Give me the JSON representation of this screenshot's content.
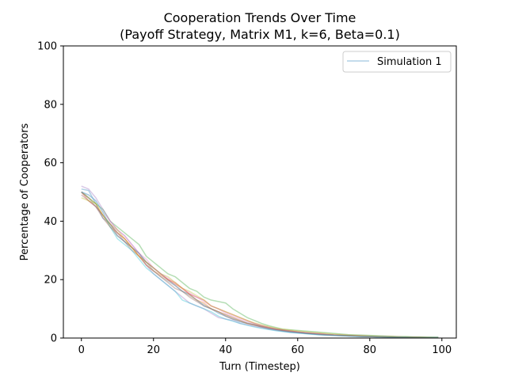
{
  "chart_data": {
    "type": "line",
    "title": "Cooperation Trends Over Time",
    "subtitle": "(Payoff Strategy, Matrix M1, k=6, Beta=0.1)",
    "xlabel": "Turn (Timestep)",
    "ylabel": "Percentage of Cooperators",
    "xlim": [
      -5,
      104
    ],
    "ylim": [
      0,
      100
    ],
    "xticks": [
      0,
      20,
      40,
      60,
      80,
      100
    ],
    "yticks": [
      0,
      20,
      40,
      60,
      80,
      100
    ],
    "grid": false,
    "legend": {
      "placement": "top-right",
      "entries": [
        "Simulation 1"
      ]
    },
    "x": [
      0,
      2,
      4,
      6,
      8,
      10,
      12,
      14,
      16,
      18,
      20,
      22,
      24,
      26,
      28,
      30,
      32,
      34,
      36,
      38,
      40,
      42,
      44,
      46,
      48,
      50,
      52,
      54,
      56,
      58,
      60,
      62,
      64,
      66,
      68,
      70,
      72,
      74,
      76,
      78,
      80,
      82,
      84,
      86,
      88,
      90,
      92,
      94,
      96,
      98,
      99
    ],
    "series": [
      {
        "name": "Simulation 1",
        "color": "#1f77b4",
        "values": [
          51,
          50.5,
          46,
          41,
          39,
          35,
          33,
          31,
          29,
          26,
          24,
          22,
          20,
          18,
          16,
          15,
          13,
          11,
          10,
          8.5,
          7.5,
          6.5,
          5.5,
          5,
          4.5,
          3.8,
          3.2,
          2.8,
          2.4,
          2,
          1.8,
          1.6,
          1.4,
          1.2,
          1,
          0.9,
          0.8,
          0.7,
          0.6,
          0.5,
          0.5,
          0.4,
          0.4,
          0.3,
          0.3,
          0.3,
          0.2,
          0.2,
          0.2,
          0.2,
          0.2
        ]
      },
      {
        "color": "#ff7f0e",
        "values": [
          50,
          48,
          46,
          42,
          38,
          36,
          34,
          31,
          28,
          25,
          23,
          21.5,
          20,
          19,
          17,
          15,
          13,
          12,
          10,
          9,
          8,
          7,
          6,
          5,
          4.5,
          4,
          3.6,
          3,
          2.7,
          2.4,
          2.1,
          1.8,
          1.6,
          1.4,
          1.2,
          1,
          0.9,
          0.8,
          0.7,
          0.6,
          0.5,
          0.5,
          0.4,
          0.4,
          0.3,
          0.3,
          0.3,
          0.3,
          0.2,
          0.2,
          0.2
        ]
      },
      {
        "color": "#2ca02c",
        "values": [
          50,
          48,
          46,
          44,
          40,
          38,
          36,
          34,
          32,
          28,
          26,
          24,
          22,
          21,
          19,
          17,
          16,
          14,
          13,
          12.5,
          12,
          10,
          8.5,
          7,
          6,
          5,
          4.2,
          3.6,
          3,
          2.8,
          2.6,
          2.4,
          2.2,
          2,
          1.8,
          1.6,
          1.4,
          1.2,
          1.1,
          1,
          0.9,
          0.8,
          0.7,
          0.6,
          0.5,
          0.5,
          0.4,
          0.4,
          0.3,
          0.3,
          0.3
        ]
      },
      {
        "color": "#d62728",
        "values": [
          50,
          47,
          45,
          42,
          39,
          36,
          34,
          31,
          28,
          26,
          24,
          22,
          20,
          18.5,
          17,
          15,
          14,
          13,
          11,
          10,
          9,
          8,
          7,
          6,
          5,
          4.2,
          3.6,
          3.1,
          2.7,
          2.4,
          2.1,
          1.8,
          1.6,
          1.5,
          1.3,
          1.1,
          1,
          0.9,
          0.8,
          0.7,
          0.6,
          0.5,
          0.5,
          0.4,
          0.4,
          0.3,
          0.3,
          0.2,
          0.2,
          0.2,
          0.2
        ]
      },
      {
        "color": "#9467bd",
        "values": [
          52,
          51,
          48,
          44,
          40,
          37,
          35,
          32,
          29,
          25,
          22,
          20,
          18,
          16,
          14,
          12,
          11,
          10,
          8.5,
          7,
          6.5,
          6,
          5,
          4.5,
          4,
          3.5,
          3,
          2.6,
          2.3,
          2,
          1.8,
          1.6,
          1.4,
          1.2,
          1,
          0.9,
          0.8,
          0.7,
          0.6,
          0.5,
          0.5,
          0.4,
          0.4,
          0.3,
          0.3,
          0.3,
          0.2,
          0.2,
          0.2,
          0.2,
          0.2
        ]
      },
      {
        "color": "#8c564b",
        "values": [
          49,
          47,
          45,
          41,
          38,
          35,
          33,
          30,
          28,
          25,
          23,
          21,
          19,
          17,
          16,
          14,
          12.5,
          11,
          10,
          9,
          7.5,
          6.5,
          5.8,
          5,
          4.4,
          3.8,
          3.3,
          2.9,
          2.5,
          2.2,
          2,
          1.7,
          1.5,
          1.3,
          1.1,
          1,
          0.9,
          0.8,
          0.7,
          0.6,
          0.5,
          0.5,
          0.4,
          0.4,
          0.3,
          0.3,
          0.2,
          0.2,
          0.2,
          0.2,
          0.2
        ]
      },
      {
        "color": "#e377c2",
        "values": [
          50,
          49,
          47,
          43,
          40,
          37,
          35,
          32,
          29,
          27,
          24,
          22,
          20.5,
          19,
          17,
          15.5,
          14,
          12.5,
          11,
          10,
          8.5,
          7.5,
          6.5,
          5.6,
          5,
          4.3,
          3.7,
          3.2,
          2.8,
          2.4,
          2.1,
          1.9,
          1.7,
          1.5,
          1.3,
          1.1,
          1,
          0.9,
          0.8,
          0.7,
          0.6,
          0.5,
          0.5,
          0.4,
          0.4,
          0.3,
          0.3,
          0.3,
          0.2,
          0.2,
          0.2
        ]
      },
      {
        "color": "#7f7f7f",
        "values": [
          50,
          48,
          45,
          42,
          39,
          36,
          33,
          31,
          29,
          26,
          23,
          21,
          19.5,
          18,
          16,
          14.5,
          13,
          11.5,
          10,
          9,
          8,
          7,
          6,
          5.2,
          4.6,
          4,
          3.4,
          3,
          2.6,
          2.3,
          2,
          1.8,
          1.6,
          1.4,
          1.2,
          1,
          0.9,
          0.8,
          0.7,
          0.6,
          0.5,
          0.5,
          0.4,
          0.4,
          0.3,
          0.3,
          0.3,
          0.2,
          0.2,
          0.2,
          0.2
        ]
      },
      {
        "color": "#bcbd22",
        "values": [
          48,
          47,
          46,
          42,
          39,
          37,
          34,
          31,
          28,
          26,
          24,
          22,
          21,
          19,
          17,
          16,
          14.5,
          13,
          11,
          10,
          9,
          8,
          7,
          6,
          5.2,
          4.5,
          3.9,
          3.4,
          3,
          2.7,
          2.4,
          2.2,
          2,
          1.8,
          1.6,
          1.4,
          1.2,
          1,
          0.9,
          0.8,
          0.7,
          0.6,
          0.5,
          0.5,
          0.4,
          0.4,
          0.3,
          0.3,
          0.3,
          0.2,
          0.2
        ]
      },
      {
        "color": "#17becf",
        "values": [
          50,
          49,
          47,
          43,
          38,
          34,
          32,
          30,
          27,
          24,
          22,
          20,
          18,
          16,
          13,
          12,
          11,
          10,
          9,
          7.5,
          6.5,
          5.8,
          5,
          4.4,
          3.8,
          3.3,
          2.9,
          2.5,
          2.2,
          1.9,
          1.7,
          1.5,
          1.3,
          1.1,
          1,
          0.9,
          0.8,
          0.7,
          0.6,
          0.5,
          0.5,
          0.4,
          0.4,
          0.3,
          0.3,
          0.3,
          0.2,
          0.2,
          0.2,
          0.2,
          0.2
        ]
      }
    ]
  }
}
